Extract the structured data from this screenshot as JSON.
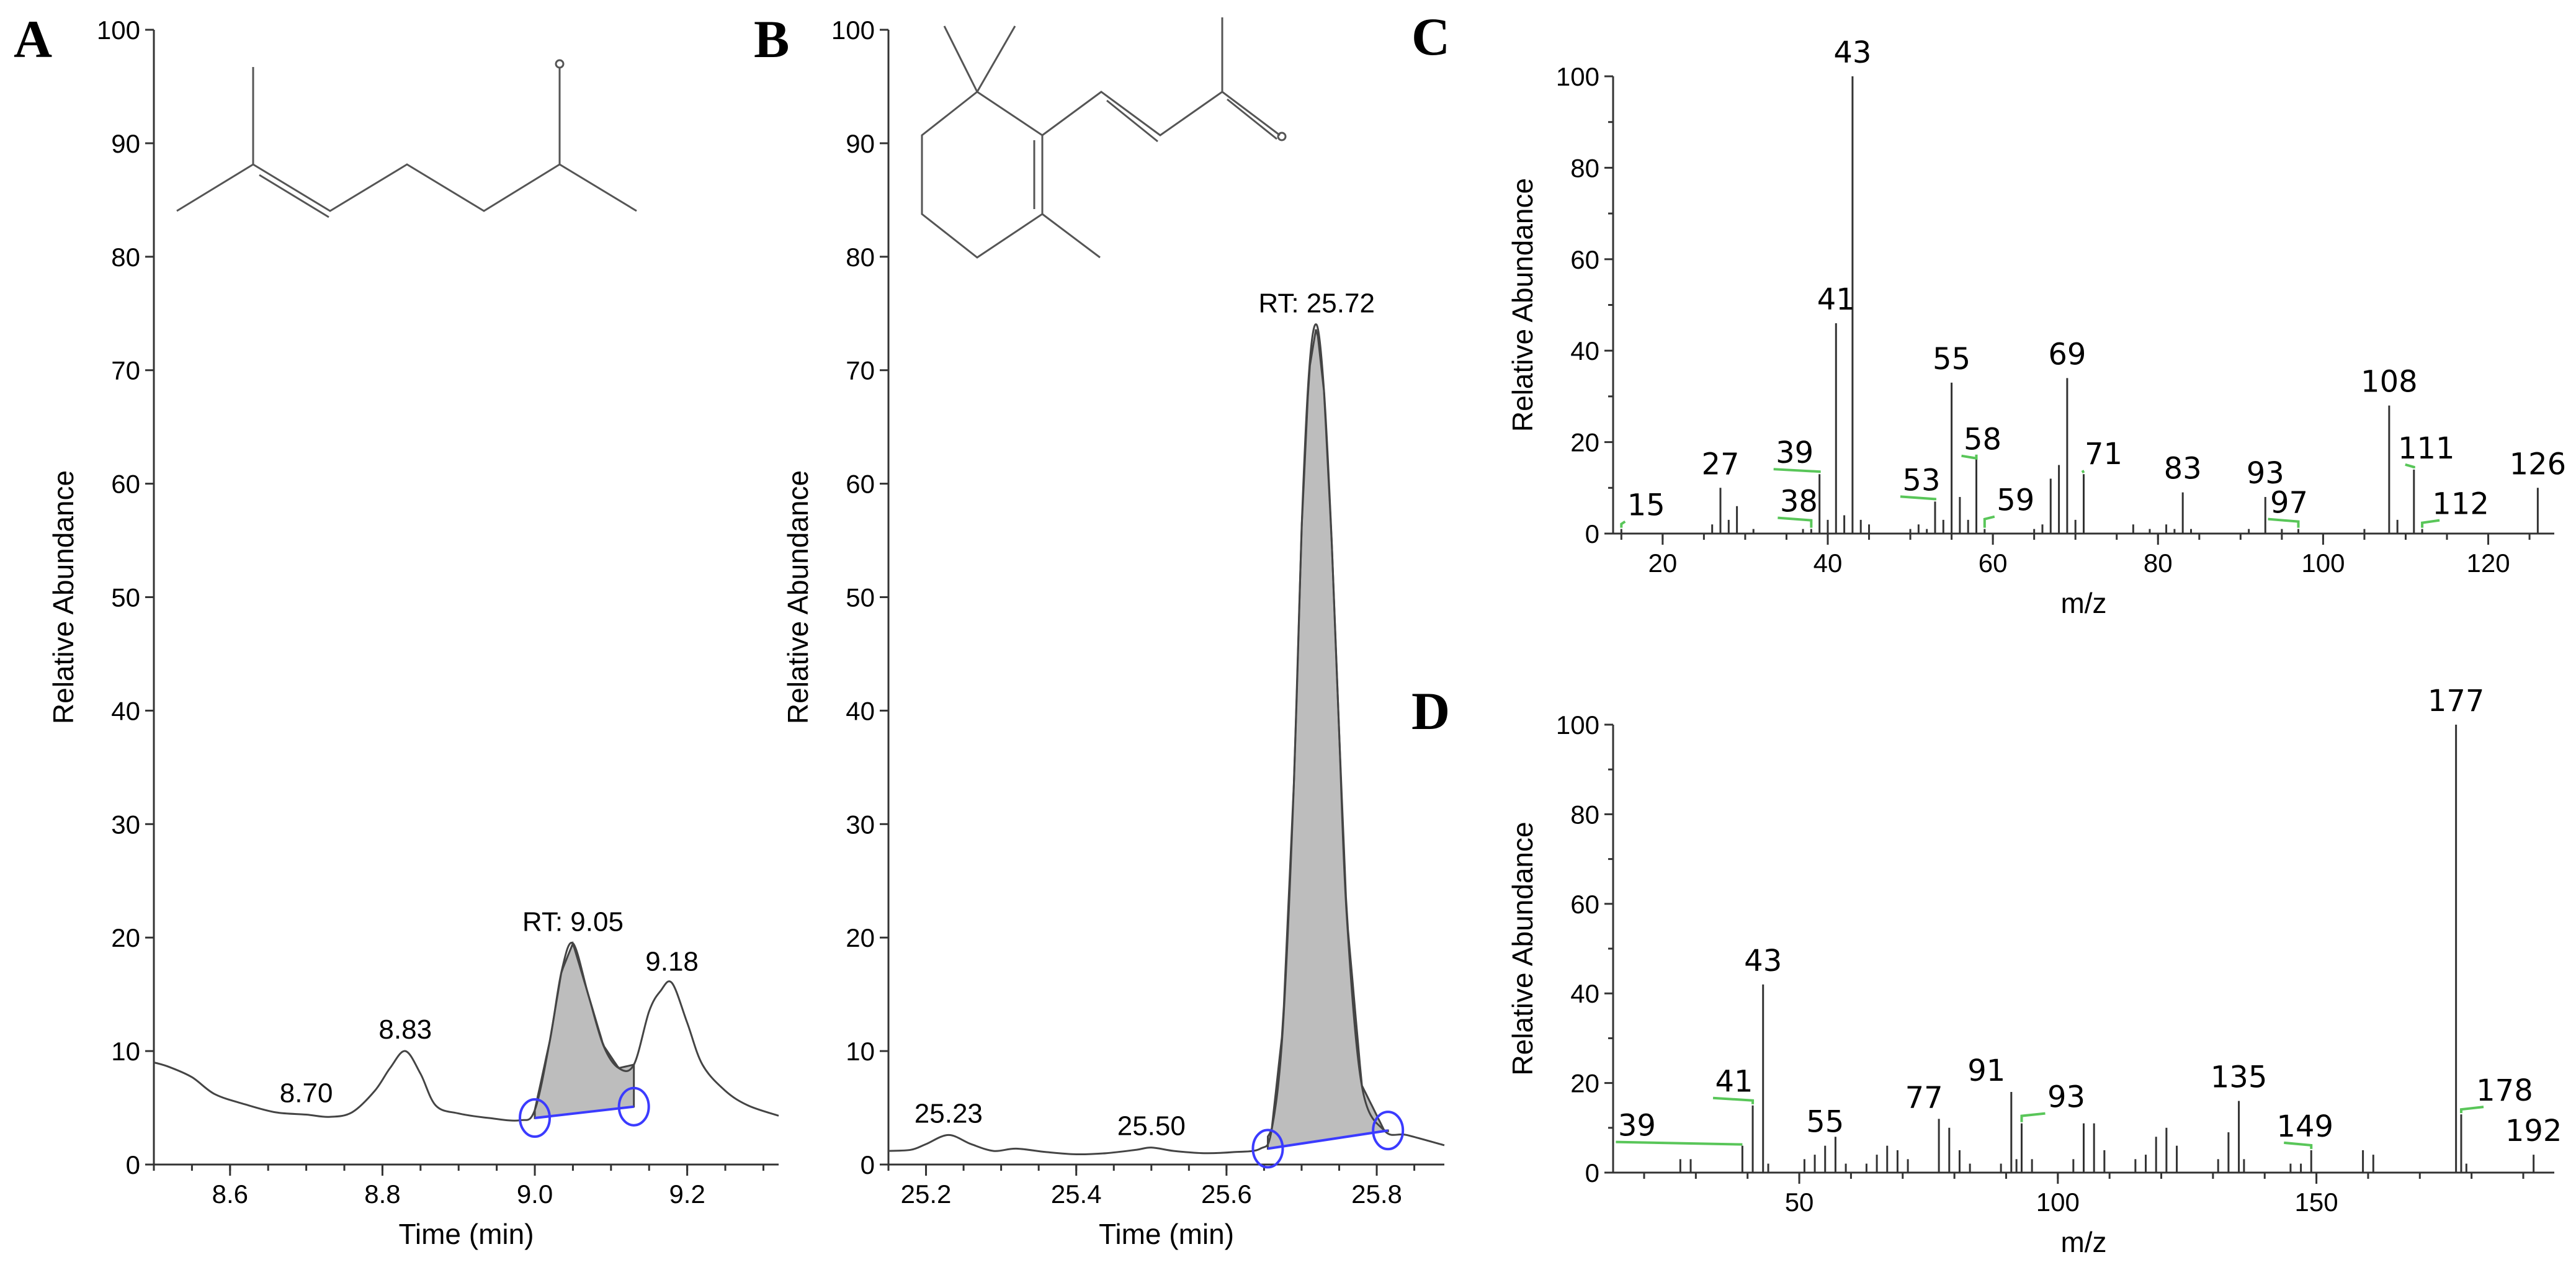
{
  "chart_data": [
    {
      "id": "A",
      "type": "line",
      "panel_label": "A",
      "xlabel": "Time (min)",
      "ylabel": "Relative Abundance",
      "xlim": [
        8.5,
        9.32
      ],
      "ylim": [
        0,
        100
      ],
      "xticks": [
        8.6,
        8.8,
        9.0,
        9.2
      ],
      "xtick_labels": [
        "8.6",
        "8.8",
        "9.0",
        "9.2"
      ],
      "yticks": [
        0,
        10,
        20,
        30,
        40,
        50,
        60,
        70,
        80,
        90,
        100
      ],
      "ytick_labels": [
        "0",
        "10",
        "20",
        "30",
        "40",
        "50",
        "60",
        "70",
        "80",
        "90",
        "100"
      ],
      "series": [
        {
          "x": [
            8.5,
            8.52,
            8.55,
            8.58,
            8.62,
            8.66,
            8.7,
            8.73,
            8.76,
            8.79,
            8.81,
            8.83,
            8.85,
            8.87,
            8.9,
            8.94,
            8.98,
            9.0,
            9.02,
            9.035,
            9.05,
            9.07,
            9.09,
            9.11,
            9.13,
            9.15,
            9.165,
            9.18,
            9.2,
            9.22,
            9.25,
            9.28,
            9.32
          ],
          "y": [
            9,
            8.6,
            7.7,
            6.2,
            5.3,
            4.6,
            4.4,
            4.2,
            4.6,
            6.5,
            8.5,
            10,
            8,
            5.2,
            4.5,
            4.1,
            3.9,
            4.8,
            11,
            17,
            19.5,
            15,
            10.5,
            8.5,
            8.8,
            13.5,
            15.3,
            16,
            12.5,
            8.8,
            6.5,
            5.2,
            4.3
          ]
        }
      ],
      "shaded_peak": {
        "x_start": 9.0,
        "x_end": 9.13,
        "baseline_start": 4.1,
        "baseline_end": 5.1
      },
      "annotations": [
        {
          "x": 8.7,
          "y": 4.4,
          "text": "8.70"
        },
        {
          "x": 8.83,
          "y": 10,
          "text": "8.83"
        },
        {
          "x": 9.05,
          "y": 19.5,
          "text": "RT: 9.05"
        },
        {
          "x": 9.18,
          "y": 16,
          "text": "9.18"
        }
      ]
    },
    {
      "id": "B",
      "type": "line",
      "panel_label": "B",
      "xlabel": "Time (min)",
      "ylabel": "Relative Abundance",
      "xlim": [
        25.15,
        25.89
      ],
      "ylim": [
        0,
        100
      ],
      "xticks": [
        25.2,
        25.4,
        25.6,
        25.8
      ],
      "xtick_labels": [
        "25.2",
        "25.4",
        "25.6",
        "25.8"
      ],
      "yticks": [
        0,
        10,
        20,
        30,
        40,
        50,
        60,
        70,
        80,
        90,
        100
      ],
      "ytick_labels": [
        "0",
        "10",
        "20",
        "30",
        "40",
        "50",
        "60",
        "70",
        "80",
        "90",
        "100"
      ],
      "series": [
        {
          "x": [
            25.15,
            25.18,
            25.2,
            25.23,
            25.26,
            25.29,
            25.32,
            25.36,
            25.4,
            25.44,
            25.48,
            25.5,
            25.53,
            25.57,
            25.61,
            25.645,
            25.66,
            25.675,
            25.69,
            25.7,
            25.71,
            25.72,
            25.73,
            25.74,
            25.75,
            25.76,
            25.78,
            25.81,
            25.84,
            25.89
          ],
          "y": [
            1.2,
            1.3,
            1.8,
            2.6,
            1.8,
            1.2,
            1.4,
            1.1,
            0.9,
            1,
            1.3,
            1.5,
            1.2,
            1,
            1.1,
            1.4,
            3,
            12,
            34,
            56,
            70,
            74,
            68,
            55,
            38,
            22,
            7,
            3,
            2.6,
            1.7
          ]
        }
      ],
      "shaded_peak": {
        "x_start": 25.655,
        "x_end": 25.815,
        "baseline_start": 1.4,
        "baseline_end": 3.0
      },
      "annotations": [
        {
          "x": 25.23,
          "y": 2.6,
          "text": "25.23"
        },
        {
          "x": 25.5,
          "y": 1.5,
          "text": "25.50"
        },
        {
          "x": 25.72,
          "y": 74,
          "text": "RT: 25.72"
        }
      ]
    },
    {
      "id": "C",
      "type": "bar",
      "panel_label": "C",
      "xlabel": "m/z",
      "ylabel": "Relative Abundance",
      "xlim": [
        14,
        128
      ],
      "ylim": [
        0,
        100
      ],
      "xticks": [
        20,
        40,
        60,
        80,
        100,
        120
      ],
      "xtick_labels": [
        "20",
        "40",
        "60",
        "80",
        "100",
        "120"
      ],
      "yticks": [
        0,
        20,
        40,
        60,
        80,
        100
      ],
      "ytick_labels": [
        "0",
        "20",
        "40",
        "60",
        "80",
        "100"
      ],
      "peaks": [
        {
          "x": 15,
          "y": 1
        },
        {
          "x": 26,
          "y": 2
        },
        {
          "x": 27,
          "y": 10
        },
        {
          "x": 28,
          "y": 3
        },
        {
          "x": 29,
          "y": 6
        },
        {
          "x": 31,
          "y": 1
        },
        {
          "x": 37,
          "y": 1
        },
        {
          "x": 38,
          "y": 1
        },
        {
          "x": 39,
          "y": 13
        },
        {
          "x": 40,
          "y": 3
        },
        {
          "x": 41,
          "y": 46
        },
        {
          "x": 42,
          "y": 4
        },
        {
          "x": 43,
          "y": 100
        },
        {
          "x": 44,
          "y": 3
        },
        {
          "x": 45,
          "y": 2
        },
        {
          "x": 50,
          "y": 1
        },
        {
          "x": 51,
          "y": 2
        },
        {
          "x": 52,
          "y": 1
        },
        {
          "x": 53,
          "y": 7
        },
        {
          "x": 54,
          "y": 3
        },
        {
          "x": 55,
          "y": 33
        },
        {
          "x": 56,
          "y": 8
        },
        {
          "x": 57,
          "y": 3
        },
        {
          "x": 58,
          "y": 17
        },
        {
          "x": 59,
          "y": 1
        },
        {
          "x": 65,
          "y": 1
        },
        {
          "x": 66,
          "y": 2
        },
        {
          "x": 67,
          "y": 12
        },
        {
          "x": 68,
          "y": 15
        },
        {
          "x": 69,
          "y": 34
        },
        {
          "x": 70,
          "y": 3
        },
        {
          "x": 71,
          "y": 13
        },
        {
          "x": 77,
          "y": 2
        },
        {
          "x": 79,
          "y": 1
        },
        {
          "x": 81,
          "y": 2
        },
        {
          "x": 82,
          "y": 1
        },
        {
          "x": 83,
          "y": 9
        },
        {
          "x": 84,
          "y": 1
        },
        {
          "x": 91,
          "y": 1
        },
        {
          "x": 93,
          "y": 8
        },
        {
          "x": 95,
          "y": 1
        },
        {
          "x": 97,
          "y": 1
        },
        {
          "x": 105,
          "y": 1
        },
        {
          "x": 108,
          "y": 28
        },
        {
          "x": 109,
          "y": 3
        },
        {
          "x": 111,
          "y": 14
        },
        {
          "x": 112,
          "y": 1
        },
        {
          "x": 126,
          "y": 10
        }
      ],
      "labels": [
        {
          "x": 15,
          "text": "15"
        },
        {
          "x": 27,
          "text": "27"
        },
        {
          "x": 38,
          "text": "38"
        },
        {
          "x": 39,
          "text": "39"
        },
        {
          "x": 41,
          "text": "41"
        },
        {
          "x": 43,
          "text": "43"
        },
        {
          "x": 53,
          "text": "53"
        },
        {
          "x": 55,
          "text": "55"
        },
        {
          "x": 58,
          "text": "58"
        },
        {
          "x": 59,
          "text": "59"
        },
        {
          "x": 69,
          "text": "69"
        },
        {
          "x": 71,
          "text": "71"
        },
        {
          "x": 83,
          "text": "83"
        },
        {
          "x": 93,
          "text": "93"
        },
        {
          "x": 97,
          "text": "97"
        },
        {
          "x": 108,
          "text": "108"
        },
        {
          "x": 111,
          "text": "111"
        },
        {
          "x": 112,
          "text": "112"
        },
        {
          "x": 126,
          "text": "126"
        }
      ]
    },
    {
      "id": "D",
      "type": "bar",
      "panel_label": "D",
      "xlabel": "m/z",
      "ylabel": "Relative Abundance",
      "xlim": [
        14,
        196
      ],
      "ylim": [
        0,
        100
      ],
      "xticks": [
        50,
        100,
        150
      ],
      "xtick_labels": [
        "50",
        "100",
        "150"
      ],
      "yticks": [
        0,
        20,
        40,
        60,
        80,
        100
      ],
      "ytick_labels": [
        "0",
        "20",
        "40",
        "60",
        "80",
        "100"
      ],
      "peaks": [
        {
          "x": 27,
          "y": 3
        },
        {
          "x": 29,
          "y": 3
        },
        {
          "x": 39,
          "y": 6
        },
        {
          "x": 41,
          "y": 15
        },
        {
          "x": 43,
          "y": 42
        },
        {
          "x": 44,
          "y": 2
        },
        {
          "x": 51,
          "y": 3
        },
        {
          "x": 53,
          "y": 4
        },
        {
          "x": 55,
          "y": 6
        },
        {
          "x": 57,
          "y": 8
        },
        {
          "x": 59,
          "y": 2
        },
        {
          "x": 63,
          "y": 2
        },
        {
          "x": 65,
          "y": 4
        },
        {
          "x": 67,
          "y": 6
        },
        {
          "x": 69,
          "y": 5
        },
        {
          "x": 71,
          "y": 3
        },
        {
          "x": 77,
          "y": 12
        },
        {
          "x": 79,
          "y": 10
        },
        {
          "x": 81,
          "y": 5
        },
        {
          "x": 83,
          "y": 2
        },
        {
          "x": 89,
          "y": 2
        },
        {
          "x": 91,
          "y": 18
        },
        {
          "x": 92,
          "y": 3
        },
        {
          "x": 93,
          "y": 11
        },
        {
          "x": 95,
          "y": 3
        },
        {
          "x": 103,
          "y": 3
        },
        {
          "x": 105,
          "y": 11
        },
        {
          "x": 107,
          "y": 11
        },
        {
          "x": 109,
          "y": 5
        },
        {
          "x": 115,
          "y": 3
        },
        {
          "x": 117,
          "y": 4
        },
        {
          "x": 119,
          "y": 8
        },
        {
          "x": 121,
          "y": 10
        },
        {
          "x": 123,
          "y": 6
        },
        {
          "x": 131,
          "y": 3
        },
        {
          "x": 133,
          "y": 9
        },
        {
          "x": 135,
          "y": 16
        },
        {
          "x": 136,
          "y": 3
        },
        {
          "x": 145,
          "y": 2
        },
        {
          "x": 147,
          "y": 2
        },
        {
          "x": 149,
          "y": 5
        },
        {
          "x": 159,
          "y": 5
        },
        {
          "x": 161,
          "y": 4
        },
        {
          "x": 177,
          "y": 100
        },
        {
          "x": 178,
          "y": 13
        },
        {
          "x": 179,
          "y": 2
        },
        {
          "x": 192,
          "y": 4
        }
      ],
      "labels": [
        {
          "x": 39,
          "text": "39"
        },
        {
          "x": 41,
          "text": "41"
        },
        {
          "x": 43,
          "text": "43"
        },
        {
          "x": 55,
          "text": "55"
        },
        {
          "x": 77,
          "text": "77"
        },
        {
          "x": 91,
          "text": "91"
        },
        {
          "x": 93,
          "text": "93"
        },
        {
          "x": 135,
          "text": "135"
        },
        {
          "x": 149,
          "text": "149"
        },
        {
          "x": 177,
          "text": "177"
        },
        {
          "x": 178,
          "text": "178"
        },
        {
          "x": 192,
          "text": "192"
        }
      ]
    }
  ]
}
